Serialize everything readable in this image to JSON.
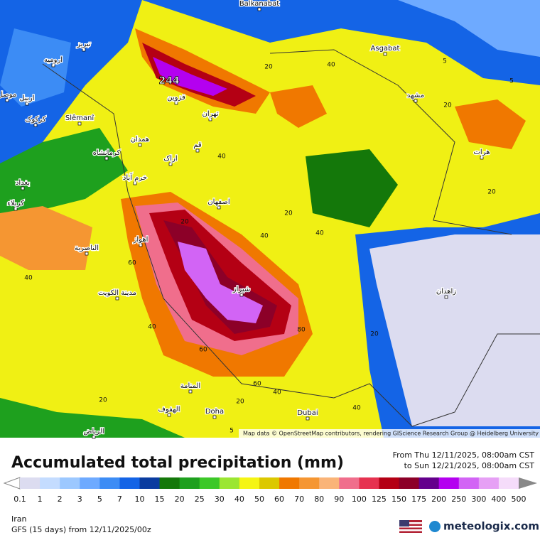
{
  "map": {
    "attribution": "Map data © OpenStreetMap contributors, rendering GIScience Research Group @ Heidelberg University",
    "labels": [
      "Balkanabat",
      "Asgabat",
      "تبریز",
      "ارومیه",
      "اربیل",
      "موصل",
      "کرکوک",
      "Slêmanî",
      "قزوین",
      "تهران",
      "مشهد",
      "همدان",
      "کرمانشاه",
      "قم",
      "اراک",
      "هرات",
      "بغداد",
      "خرم آباد",
      "اصفهان",
      "کربلاء",
      "اهواز",
      "الناصرية",
      "شیراز",
      "زاهدان",
      "مدينة الكويت",
      "المنامة",
      "الهفوف",
      "Doha",
      "Dubai",
      "الرياض"
    ],
    "max_label": "244",
    "contours": [
      "20",
      "40",
      "5",
      "5",
      "20",
      "40",
      "40",
      "20",
      "40",
      "20",
      "60",
      "40",
      "40",
      "60",
      "80",
      "60",
      "40",
      "20",
      "20",
      "20",
      "40",
      "20",
      "5"
    ]
  },
  "legend": {
    "title": "Accumulated total precipitation (mm)",
    "from": "From Thu 12/11/2025, 08:00am CST",
    "to": "to Sun 12/21/2025, 08:00am CST",
    "ticks": [
      "0.1",
      "1",
      "2",
      "3",
      "5",
      "7",
      "10",
      "15",
      "20",
      "25",
      "30",
      "40",
      "50",
      "60",
      "70",
      "80",
      "90",
      "100",
      "125",
      "150",
      "175",
      "200",
      "250",
      "300",
      "400",
      "500"
    ],
    "colors": [
      "#dcdcf0",
      "#c4dcff",
      "#9cc8ff",
      "#6eaaff",
      "#3c8cf5",
      "#1464e6",
      "#0a3ca0",
      "#14780a",
      "#1ea01e",
      "#3cc828",
      "#9be632",
      "#f5f514",
      "#dcc800",
      "#f07800",
      "#f59632",
      "#fab478",
      "#f06e8c",
      "#e63250",
      "#b40014",
      "#8c0028",
      "#64008c",
      "#b400f0",
      "#d264f5",
      "#e6a0f5",
      "#f5dcfa",
      "#d2d2d2"
    ],
    "region": "Iran",
    "model": "GFS (15 days) from 12/11/2025/00z",
    "brand": "meteologix.com"
  }
}
